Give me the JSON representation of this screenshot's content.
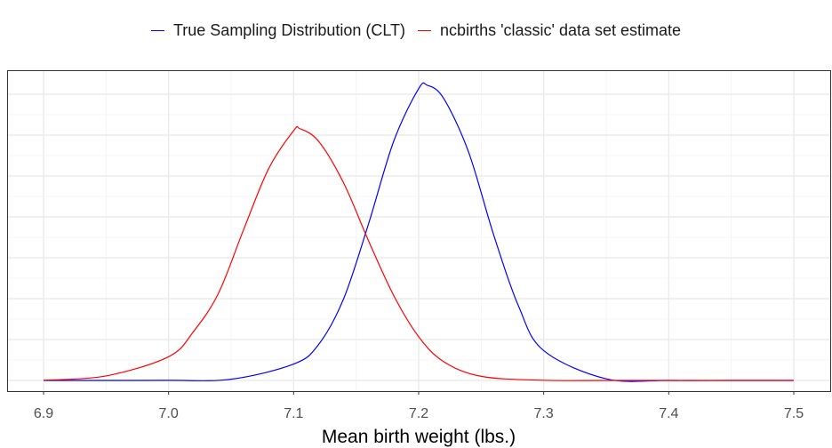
{
  "legend": {
    "items": [
      {
        "label": "True Sampling Distribution (CLT)",
        "color": "#0000ff"
      },
      {
        "label": "ncbirths 'classic' data set estimate",
        "color": "#ff0000"
      }
    ]
  },
  "chart_data": {
    "type": "line",
    "title": "",
    "xlabel": "Mean birth weight (lbs.)",
    "ylabel": "",
    "xlim": [
      6.9,
      7.5
    ],
    "xticks": [
      "6.9",
      "7.0",
      "7.1",
      "7.2",
      "7.3",
      "7.4",
      "7.5"
    ],
    "y_tick_labels_shown": false,
    "grid": true,
    "legend_position": "top",
    "series": [
      {
        "name": "True Sampling Distribution (CLT)",
        "color": "#0000ff",
        "x": [
          6.9,
          6.95,
          7.0,
          7.05,
          7.1,
          7.12,
          7.14,
          7.16,
          7.18,
          7.2,
          7.207,
          7.22,
          7.24,
          7.26,
          7.28,
          7.3,
          7.35,
          7.4,
          7.45,
          7.5
        ],
        "y": [
          0.0,
          0.0,
          0.002,
          0.03,
          0.4,
          0.88,
          2.0,
          3.84,
          5.85,
          7.14,
          7.22,
          6.9,
          5.58,
          3.56,
          1.81,
          0.73,
          0.04,
          0.0,
          0.0,
          0.0
        ]
      },
      {
        "name": "ncbirths 'classic' data set estimate",
        "color": "#ff0000",
        "x": [
          6.9,
          6.95,
          7.0,
          7.02,
          7.04,
          7.06,
          7.08,
          7.1,
          7.105,
          7.12,
          7.14,
          7.16,
          7.18,
          7.2,
          7.22,
          7.25,
          7.3,
          7.35,
          7.4,
          7.5
        ],
        "y": [
          0.004,
          0.11,
          0.58,
          1.2,
          2.14,
          3.69,
          5.18,
          6.11,
          6.16,
          5.85,
          4.83,
          3.41,
          2.08,
          1.07,
          0.46,
          0.1,
          0.004,
          0.0,
          0.0,
          0.0
        ]
      }
    ]
  }
}
